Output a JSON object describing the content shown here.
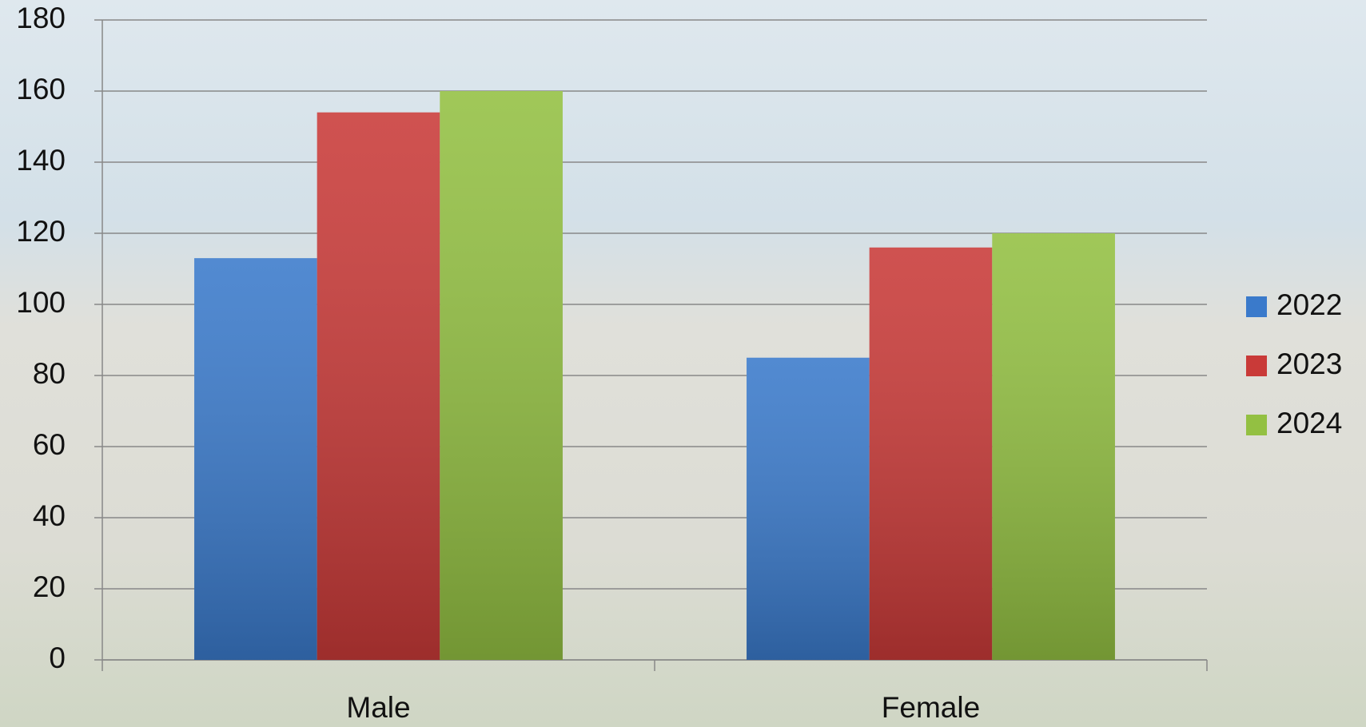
{
  "chart_data": {
    "type": "bar",
    "categories": [
      "Male",
      "Female"
    ],
    "series": [
      {
        "name": "2022",
        "color": "#3a7acb",
        "values": [
          113,
          85
        ]
      },
      {
        "name": "2023",
        "color": "#c93a38",
        "values": [
          154,
          116
        ]
      },
      {
        "name": "2024",
        "color": "#93c042",
        "values": [
          160,
          120
        ]
      }
    ],
    "ylim": [
      0,
      180
    ],
    "yticks": [
      0,
      20,
      40,
      60,
      80,
      100,
      120,
      140,
      160,
      180
    ],
    "grid": true,
    "legend": "right"
  }
}
